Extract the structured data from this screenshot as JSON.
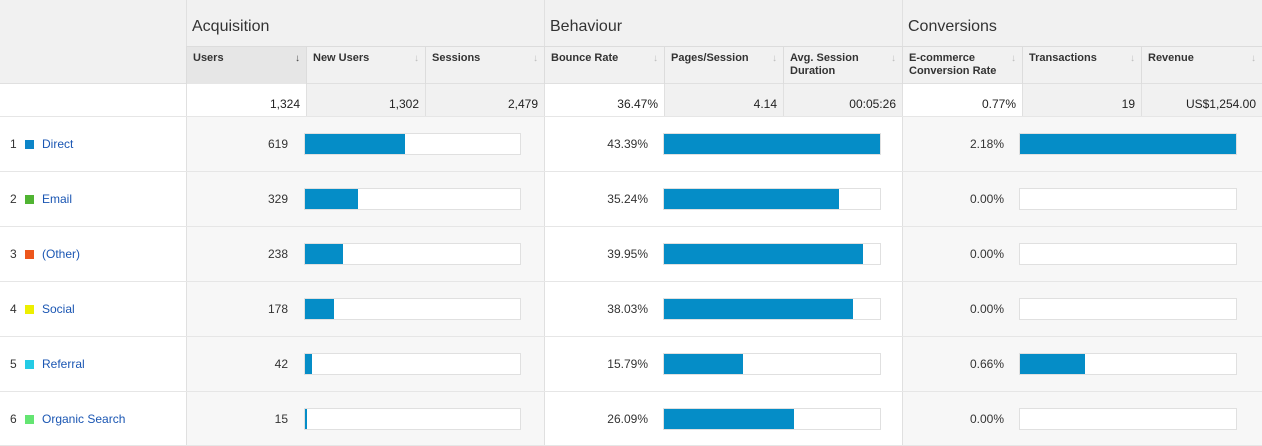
{
  "groups": {
    "acquisition": "Acquisition",
    "behaviour": "Behaviour",
    "conversions": "Conversions"
  },
  "columns": {
    "users": "Users",
    "new_users": "New Users",
    "sessions": "Sessions",
    "bounce_rate": "Bounce Rate",
    "pages_session": "Pages/Session",
    "avg_session_duration": "Avg. Session Duration",
    "ecom_rate": "E-commerce Conversion Rate",
    "transactions": "Transactions",
    "revenue": "Revenue"
  },
  "totals": {
    "users": "1,324",
    "new_users": "1,302",
    "sessions": "2,479",
    "bounce_rate": "36.47%",
    "pages_session": "4.14",
    "avg_session_duration": "00:05:26",
    "ecom_rate": "0.77%",
    "transactions": "19",
    "revenue": "US$1,254.00"
  },
  "colors": {
    "bar": "#058dc7",
    "link": "#1a56b3"
  },
  "rows": [
    {
      "rank": "1",
      "channel": "Direct",
      "color": "#0c85c8",
      "users": "619",
      "users_frac": 0.466,
      "bounce": "43.39%",
      "bounce_frac": 1.0,
      "ecom": "2.18%",
      "ecom_frac": 1.0
    },
    {
      "rank": "2",
      "channel": "Email",
      "color": "#50b432",
      "users": "329",
      "users_frac": 0.248,
      "bounce": "35.24%",
      "bounce_frac": 0.812,
      "ecom": "0.00%",
      "ecom_frac": 0.0
    },
    {
      "rank": "3",
      "channel": "(Other)",
      "color": "#ed561b",
      "users": "238",
      "users_frac": 0.179,
      "bounce": "39.95%",
      "bounce_frac": 0.921,
      "ecom": "0.00%",
      "ecom_frac": 0.0
    },
    {
      "rank": "4",
      "channel": "Social",
      "color": "#edef00",
      "users": "178",
      "users_frac": 0.134,
      "bounce": "38.03%",
      "bounce_frac": 0.876,
      "ecom": "0.00%",
      "ecom_frac": 0.0
    },
    {
      "rank": "5",
      "channel": "Referral",
      "color": "#24cbe5",
      "users": "42",
      "users_frac": 0.032,
      "bounce": "15.79%",
      "bounce_frac": 0.364,
      "ecom": "0.66%",
      "ecom_frac": 0.303
    },
    {
      "rank": "6",
      "channel": "Organic Search",
      "color": "#64e572",
      "users": "15",
      "users_frac": 0.011,
      "bounce": "26.09%",
      "bounce_frac": 0.601,
      "ecom": "0.00%",
      "ecom_frac": 0.0
    }
  ]
}
